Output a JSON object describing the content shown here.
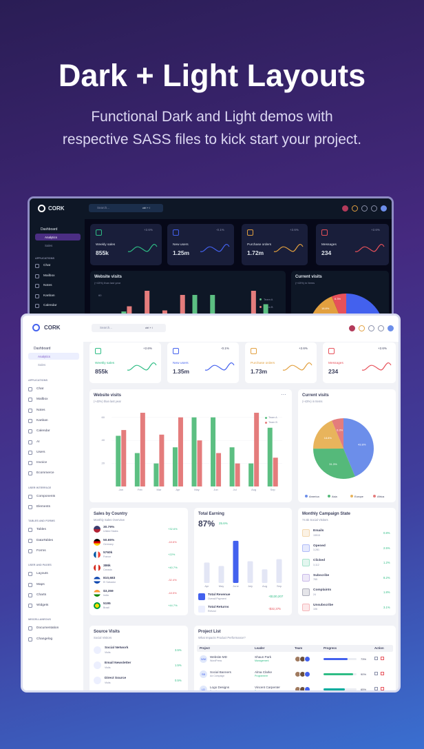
{
  "hero": {
    "title": "Dark + Light Layouts",
    "subtitle": [
      "Functional Dark and Light demos with",
      "respective SASS files to kick start your project."
    ]
  },
  "dark": {
    "brand": "CORK",
    "search": "Search...",
    "shortcut": "ctrl + /",
    "dashboard": {
      "label": "Dashboard",
      "children": [
        "Analytics",
        "Sales"
      ]
    },
    "menu_sections": [
      {
        "heading": "APPLICATIONS",
        "items": [
          "Chat",
          "Mailbox",
          "Notes",
          "Kanban",
          "Calendar"
        ]
      }
    ],
    "cards": [
      {
        "label": "Weekly sales",
        "value": "855k",
        "change": "+2.6%"
      },
      {
        "label": "New users",
        "value": "1.25m",
        "change": "-0.1%"
      },
      {
        "label": "Purchase orders",
        "value": "1.72m",
        "change": "+2.6%"
      },
      {
        "label": "Messages",
        "value": "234",
        "change": "+2.6%"
      }
    ],
    "visits": {
      "title": "Website visits",
      "subtitle": "(+43%) than last year",
      "legend": [
        "Team A",
        "Team B"
      ],
      "yticks": [
        60,
        40
      ]
    },
    "current": {
      "title": "Current visits",
      "subtitle": "(+43%) in Items",
      "labels": [
        "6.3%",
        "18.8%"
      ]
    }
  },
  "light": {
    "brand": "CORK",
    "search": "Search...",
    "shortcut": "ctrl + /",
    "dashboard": {
      "label": "Dashboard",
      "children": [
        "Analytics",
        "Sales"
      ]
    },
    "menu_sections": [
      {
        "heading": "APPLICATIONS",
        "items": [
          "Chat",
          "Mailbox",
          "Notes",
          "Kanban",
          "Calendar",
          "AI",
          "Users",
          "Invoice",
          "Ecommerce"
        ]
      },
      {
        "heading": "USER INTERFACE",
        "items": [
          "Components",
          "Elements"
        ]
      },
      {
        "heading": "TABLES AND FORMS",
        "items": [
          "Tables",
          "DataTables",
          "Forms"
        ]
      },
      {
        "heading": "USER AND PAGES",
        "items": [
          "Layouts",
          "Maps",
          "Charts",
          "Widgets"
        ]
      },
      {
        "heading": "MISCELLANEOUS",
        "items": [
          "Documentation",
          "Changelog"
        ]
      }
    ],
    "cards": [
      {
        "label": "Weekly sales",
        "value": "855k",
        "change": "+2.6%"
      },
      {
        "label": "New users",
        "value": "1.35m",
        "change": "-0.1%"
      },
      {
        "label": "Purchase orders",
        "value": "1.73m",
        "change": "+2.6%"
      },
      {
        "label": "Messages",
        "value": "234",
        "change": "+2.6%"
      }
    ],
    "visits": {
      "title": "Website visits",
      "subtitle": "(+43%) than last year",
      "chart": {
        "type": "bar",
        "categories": [
          "Jan",
          "Feb",
          "Mar",
          "Apr",
          "May",
          "Jun",
          "Jul",
          "Aug",
          "Sep"
        ],
        "series": [
          {
            "name": "Team A",
            "color": "#5cbf82",
            "values": [
              44,
              29,
              20,
              34,
              60,
              60,
              34,
              20,
              51
            ]
          },
          {
            "name": "Team B",
            "color": "#e47c7c",
            "values": [
              49,
              64,
              45,
              60,
              40,
              29,
              20,
              64,
              25
            ]
          }
        ],
        "ylim": [
          0,
          70
        ],
        "yticks": [
          20,
          40,
          60
        ]
      }
    },
    "current": {
      "title": "Current visits",
      "subtitle": "(+43%) in Items",
      "chart": {
        "type": "pie",
        "categories": [
          "America",
          "Asia",
          "Europe",
          "Africa"
        ],
        "values": [
          43.8,
          31.3,
          18.8,
          6.3
        ],
        "value_labels": [
          "43.8%",
          "31.3%",
          "18.8%",
          "6.3%"
        ],
        "colors": [
          "#6c8eea",
          "#55b97a",
          "#e8b45c",
          "#e47c7c"
        ]
      }
    },
    "sales": {
      "title": "Sales by Country",
      "subtitle": "Monthly Sales Overview",
      "rows": [
        {
          "value": "30.79%",
          "country": "United States",
          "change": "+32.6%"
        },
        {
          "value": "50.65%",
          "country": "Germany",
          "change": "-18.6%"
        },
        {
          "value": "5760k",
          "country": "France",
          "change": "+22%"
        },
        {
          "value": "386k",
          "country": "Canada",
          "change": "+40.7%"
        },
        {
          "value": "810,683",
          "country": "El Salvador",
          "change": "-32.4%"
        },
        {
          "value": "$3,359",
          "country": "India",
          "change": "-18.5%"
        },
        {
          "value": "5195",
          "country": "Brazil",
          "change": "+44.7%"
        }
      ]
    },
    "earning": {
      "title": "Total Earning",
      "value": "87%",
      "change": "25.6%",
      "chart": {
        "type": "bar",
        "categories": [
          "Apr",
          "May",
          "June",
          "July",
          "Aug",
          "Sep"
        ],
        "values": [
          30,
          25,
          62,
          32,
          20,
          35
        ],
        "colors": [
          "#e3e6f5",
          "#e3e6f5",
          "#4361ee",
          "#e3e6f5",
          "#e3e6f5",
          "#e3e6f5"
        ],
        "ylim": [
          0,
          70
        ]
      },
      "rows": [
        {
          "label": "Total Revenue",
          "sub": "Overall Payment",
          "value": "+$130,207"
        },
        {
          "label": "Total Returns",
          "sub": "Refund",
          "value": "-$32,375"
        }
      ]
    },
    "campaign": {
      "title": "Monthly Campaign State",
      "subtitle": "74.5k Social Visitors",
      "rows": [
        {
          "label": "Emails",
          "sub": "15515",
          "value": "0.8%"
        },
        {
          "label": "Opened",
          "sub": "3,281",
          "value": "2.5%"
        },
        {
          "label": "Clicked",
          "sub": "3,112",
          "value": "1.2%"
        },
        {
          "label": "Subscribe",
          "sub": "765",
          "value": "8.2%"
        },
        {
          "label": "Complaints",
          "sub": "24",
          "value": "1.8%"
        },
        {
          "label": "Unsubscribe",
          "sub": "106",
          "value": "3.1%"
        }
      ]
    },
    "source": {
      "title": "Source Visits",
      "subtitle": "Social Visitors",
      "rows": [
        {
          "label": "Social Network",
          "sub": "Visits",
          "value": "3.5%"
        },
        {
          "label": "Email Newsletter",
          "sub": "Visits",
          "value": "1.5%"
        },
        {
          "label": "Direct Source",
          "sub": "Visits",
          "value": "0.5%"
        }
      ]
    },
    "projects": {
      "title": "Project List",
      "subtitle": "What Impacts Product Performance?",
      "columns": [
        "Project",
        "Leader",
        "Team",
        "Progress",
        "Action"
      ],
      "rows": [
        {
          "initials": "WM",
          "name": "Website MD",
          "sub": "WordPress",
          "leader": "Shaun Park",
          "role": "Management",
          "progress": {
            "value": 73,
            "label": "73%"
          }
        },
        {
          "initials": "SB",
          "name": "Social Banners",
          "sub": "Ad Campaign",
          "leader": "Alma Clarke",
          "role": "Programmer",
          "progress": {
            "value": 90,
            "label": "90%"
          }
        },
        {
          "initials": "LD",
          "name": "Logo Designs",
          "sub": "Branding",
          "leader": "Vincent Carpenter",
          "role": "Designer",
          "progress": {
            "value": 65,
            "label": "65%"
          }
        }
      ]
    }
  }
}
